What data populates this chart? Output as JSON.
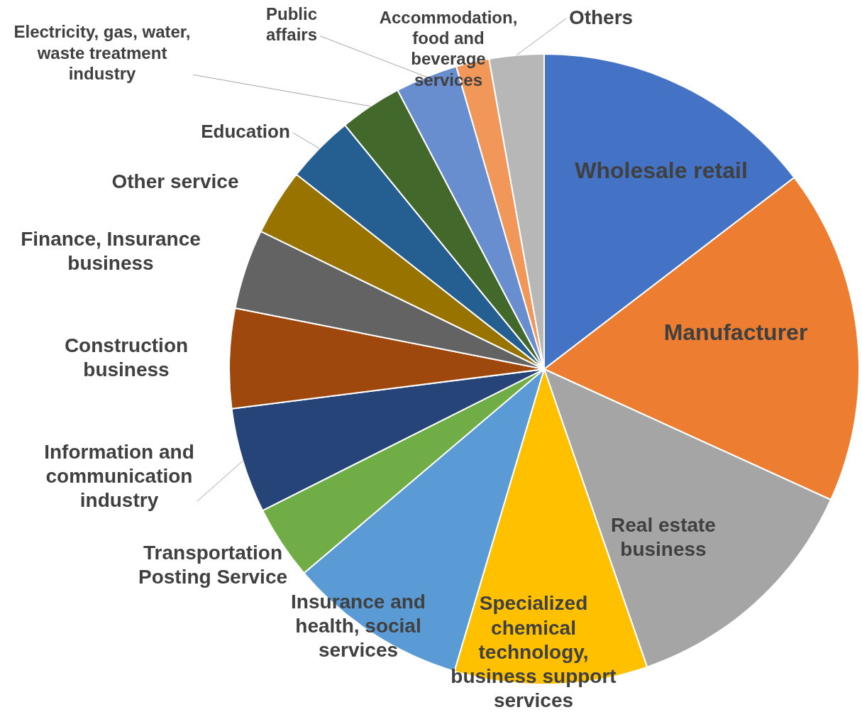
{
  "chart_data": {
    "type": "pie",
    "categories": [
      "Wholesale retail",
      "Manufacturer",
      "Real estate business",
      "Specialized chemical technology, business support services",
      "Insurance and health, social services",
      "Transportation Posting Service",
      "Information and communication industry",
      "Construction business",
      "Finance, Insurance business",
      "Other service",
      "Education",
      "Electricity, gas, water, waste treatment industry",
      "Public affairs",
      "Accommodation, food and beverage services",
      "Others"
    ],
    "values": [
      14.6,
      17.2,
      12.9,
      9.9,
      9.2,
      3.8,
      5.4,
      5.1,
      4.1,
      3.4,
      3.5,
      3.2,
      3.2,
      1.7,
      2.8
    ],
    "colors": [
      "#4472c4",
      "#ed7d31",
      "#a5a5a5",
      "#ffc000",
      "#5b9bd5",
      "#70ad47",
      "#264478",
      "#9e480e",
      "#636363",
      "#997300",
      "#255e91",
      "#43682b",
      "#698ed0",
      "#f1975a",
      "#b7b7b7"
    ],
    "legend": false
  }
}
